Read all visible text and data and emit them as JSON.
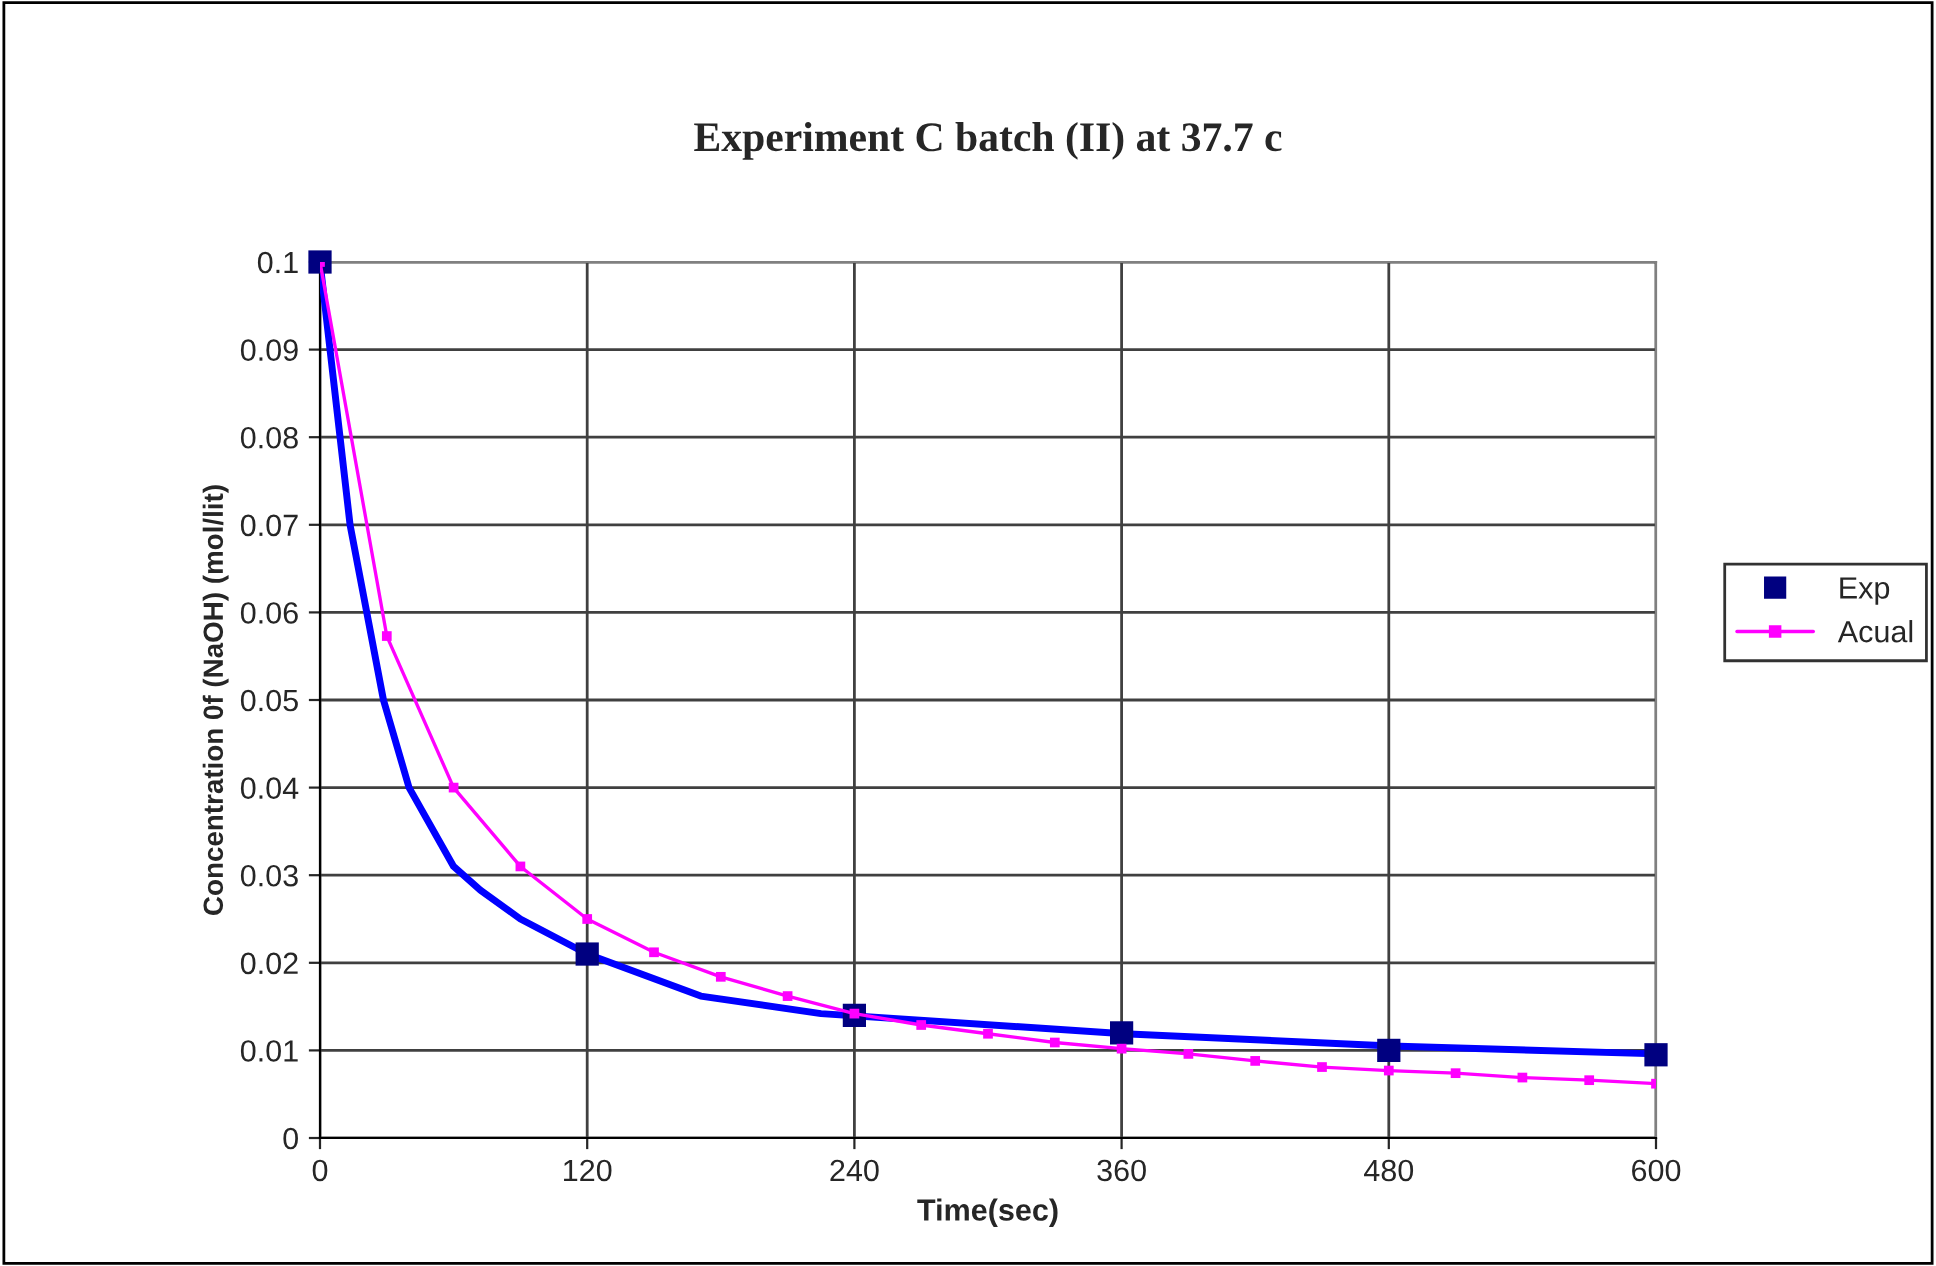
{
  "chart_data": {
    "type": "line",
    "title": "Experiment C batch (II) at 37.7 c",
    "xlabel": "Time(sec)",
    "ylabel": "Concentration 0f (NaOH) (mol/lit)",
    "xlim": [
      0,
      600
    ],
    "ylim": [
      0,
      0.1
    ],
    "xticks": [
      0,
      120,
      240,
      360,
      480,
      600
    ],
    "yticks": [
      0,
      0.01,
      0.02,
      0.03,
      0.04,
      0.05,
      0.06,
      0.07,
      0.08,
      0.09,
      0.1
    ],
    "grid": true,
    "legend": "right",
    "series": [
      {
        "color": "#0000ff",
        "marker": "none",
        "x": [
          0,
          9,
          13.5,
          21,
          28.5,
          40,
          60,
          72,
          90,
          120,
          171,
          225,
          361,
          481,
          600
        ],
        "values": [
          0.1,
          0.08,
          0.07,
          0.06,
          0.05,
          0.04,
          0.031,
          0.0283,
          0.025,
          0.021,
          0.0162,
          0.0142,
          0.0119,
          0.0105,
          0.0096
        ]
      },
      {
        "type": "scatter",
        "name": "Exp",
        "color": "#000080",
        "marker": "square",
        "x": [
          0,
          120,
          240,
          360,
          480,
          600
        ],
        "values": [
          0.1,
          0.021,
          0.014,
          0.012,
          0.01,
          0.0095
        ]
      },
      {
        "name": "Acual",
        "color": "#ff00ff",
        "marker": "square",
        "x": [
          0,
          30,
          60,
          90,
          120,
          150,
          180,
          210,
          240,
          270,
          300,
          330,
          360,
          390,
          420,
          450,
          480,
          510,
          540,
          570,
          600
        ],
        "values": [
          0.1,
          0.0573,
          0.04,
          0.031,
          0.025,
          0.0212,
          0.0184,
          0.0162,
          0.0142,
          0.0129,
          0.0119,
          0.0109,
          0.0102,
          0.0096,
          0.0088,
          0.0081,
          0.0077,
          0.0074,
          0.0069,
          0.0066,
          0.0062
        ]
      }
    ]
  }
}
